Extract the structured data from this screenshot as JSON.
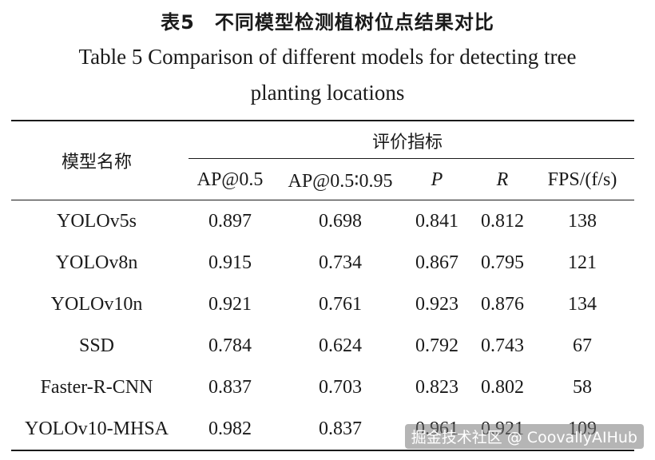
{
  "title_cn": "表5　不同模型检测植树位点结果对比",
  "title_en_line1": "Table 5  Comparison of different models for detecting tree",
  "title_en_line2": "planting locations",
  "header": {
    "model": "模型名称",
    "group": "评价指标",
    "cols": [
      "AP@0.5",
      "AP@0.5∶0.95",
      "P",
      "R",
      "FPS/(f/s)"
    ]
  },
  "rows": [
    {
      "model": "YOLOv5s",
      "values": [
        "0.897",
        "0.698",
        "0.841",
        "0.812",
        "138"
      ]
    },
    {
      "model": "YOLOv8n",
      "values": [
        "0.915",
        "0.734",
        "0.867",
        "0.795",
        "121"
      ]
    },
    {
      "model": "YOLOv10n",
      "values": [
        "0.921",
        "0.761",
        "0.923",
        "0.876",
        "134"
      ]
    },
    {
      "model": "SSD",
      "values": [
        "0.784",
        "0.624",
        "0.792",
        "0.743",
        "67"
      ]
    },
    {
      "model": "Faster-R-CNN",
      "values": [
        "0.837",
        "0.703",
        "0.823",
        "0.802",
        "58"
      ]
    },
    {
      "model": "YOLOv10-MHSA",
      "values": [
        "0.982",
        "0.837",
        "0.961",
        "0.921",
        "109"
      ]
    }
  ],
  "watermark": "掘金技术社区 @ CoovallyAIHub"
}
